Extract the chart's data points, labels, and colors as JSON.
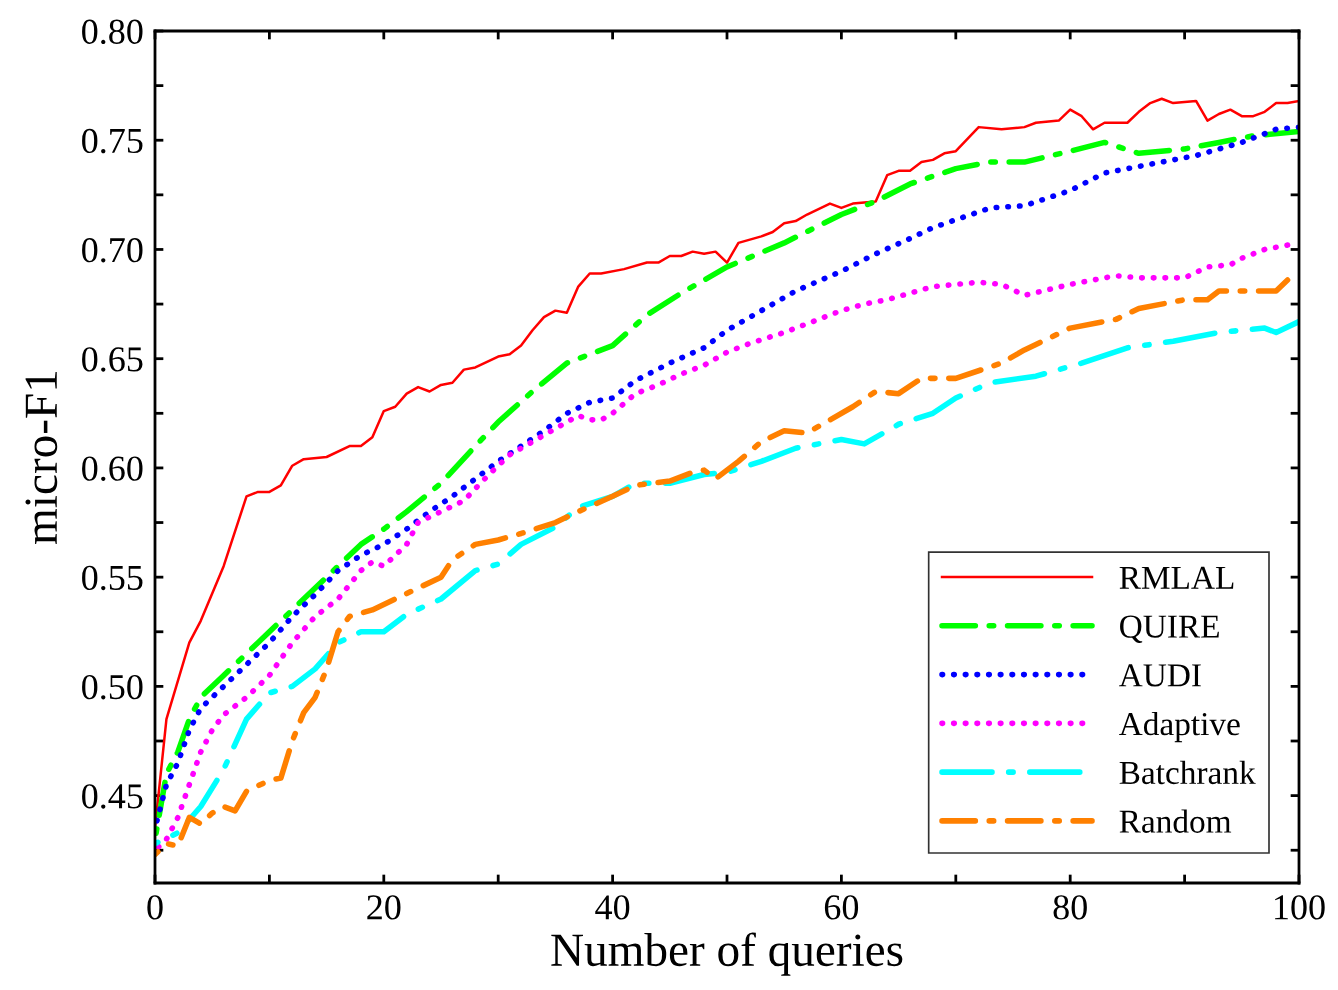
{
  "chart_data": {
    "type": "line",
    "xlabel": "Number of queries",
    "ylabel": "micro-F1",
    "xlim": [
      0,
      100
    ],
    "ylim": [
      0.41,
      0.8
    ],
    "xticks": [
      0,
      {
        "value": 10,
        "label": null
      },
      20,
      {
        "value": 30,
        "label": null
      },
      40,
      {
        "value": 50,
        "label": null
      },
      60,
      {
        "value": 70,
        "label": null
      },
      80,
      {
        "value": 90,
        "label": null
      },
      100
    ],
    "yticks": [
      {
        "value": 0.425,
        "label": null
      },
      {
        "value": 0.45,
        "label": "0.45"
      },
      {
        "value": 0.475,
        "label": null
      },
      {
        "value": 0.5,
        "label": "0.50"
      },
      {
        "value": 0.525,
        "label": null
      },
      {
        "value": 0.55,
        "label": "0.55"
      },
      {
        "value": 0.575,
        "label": null
      },
      {
        "value": 0.6,
        "label": "0.60"
      },
      {
        "value": 0.625,
        "label": null
      },
      {
        "value": 0.65,
        "label": "0.65"
      },
      {
        "value": 0.675,
        "label": null
      },
      {
        "value": 0.7,
        "label": "0.70"
      },
      {
        "value": 0.725,
        "label": null
      },
      {
        "value": 0.75,
        "label": "0.75"
      },
      {
        "value": 0.775,
        "label": null
      },
      {
        "value": 0.8,
        "label": "0.80"
      }
    ],
    "grid": false,
    "legend": "bottom right",
    "marker": "none",
    "series": [
      {
        "name": "RMLAL",
        "color": "#ff0000",
        "line_style": "solid",
        "x": [
          0,
          1,
          3,
          4,
          6,
          8,
          9,
          10,
          11,
          12,
          13,
          15,
          17,
          18,
          19,
          20,
          21,
          22,
          23,
          24,
          25,
          26,
          27,
          28,
          30,
          31,
          32,
          33,
          34,
          35,
          36,
          37,
          38,
          39,
          41,
          43,
          44,
          45,
          46,
          47,
          48,
          49,
          50,
          51,
          53,
          54,
          55,
          56,
          57,
          59,
          60,
          61,
          63,
          64,
          65,
          66,
          67,
          68,
          69,
          70,
          72,
          74,
          76,
          77,
          79,
          80,
          81,
          82,
          83,
          85,
          86,
          87,
          88,
          89,
          91,
          92,
          93,
          94,
          95,
          96,
          97,
          98,
          99,
          100
        ],
        "values": [
          0.435,
          0.485,
          0.52,
          0.53,
          0.555,
          0.587,
          0.589,
          0.589,
          0.592,
          0.601,
          0.604,
          0.605,
          0.61,
          0.61,
          0.614,
          0.626,
          0.628,
          0.634,
          0.637,
          0.635,
          0.638,
          0.639,
          0.645,
          0.646,
          0.651,
          0.652,
          0.656,
          0.663,
          0.669,
          0.672,
          0.671,
          0.683,
          0.689,
          0.689,
          0.691,
          0.694,
          0.694,
          0.697,
          0.697,
          0.699,
          0.698,
          0.699,
          0.694,
          0.703,
          0.706,
          0.708,
          0.712,
          0.713,
          0.716,
          0.721,
          0.719,
          0.721,
          0.722,
          0.734,
          0.736,
          0.736,
          0.74,
          0.741,
          0.744,
          0.745,
          0.756,
          0.755,
          0.756,
          0.758,
          0.759,
          0.764,
          0.761,
          0.755,
          0.758,
          0.758,
          0.763,
          0.767,
          0.769,
          0.767,
          0.768,
          0.759,
          0.762,
          0.764,
          0.761,
          0.761,
          0.763,
          0.767,
          0.767,
          0.768
        ]
      },
      {
        "name": "QUIRE",
        "color": "#00ff00",
        "line_style": "dashdot",
        "x": [
          0,
          1,
          2,
          3,
          4,
          6,
          8,
          10,
          12,
          15,
          18,
          20,
          22,
          25,
          28,
          30,
          33,
          36,
          40,
          43,
          46,
          50,
          55,
          60,
          63,
          66,
          70,
          73,
          76,
          80,
          83,
          86,
          90,
          93,
          96,
          100
        ],
        "values": [
          0.43,
          0.46,
          0.47,
          0.485,
          0.495,
          0.505,
          0.515,
          0.525,
          0.535,
          0.55,
          0.565,
          0.572,
          0.58,
          0.593,
          0.61,
          0.621,
          0.635,
          0.648,
          0.656,
          0.67,
          0.68,
          0.692,
          0.703,
          0.716,
          0.722,
          0.73,
          0.737,
          0.74,
          0.74,
          0.745,
          0.749,
          0.744,
          0.746,
          0.749,
          0.752,
          0.754
        ]
      },
      {
        "name": "AUDI",
        "color": "#0000ff",
        "line_style": "dotted",
        "x": [
          0,
          1,
          2,
          3,
          4,
          6,
          8,
          10,
          12,
          14,
          16,
          18,
          20,
          22,
          24,
          26,
          28,
          30,
          32,
          34,
          36,
          38,
          40,
          42,
          45,
          48,
          50,
          53,
          56,
          60,
          63,
          66,
          68,
          73,
          76,
          80,
          83,
          88,
          91,
          95,
          98,
          100
        ],
        "values": [
          0.435,
          0.455,
          0.465,
          0.48,
          0.49,
          0.5,
          0.51,
          0.52,
          0.532,
          0.542,
          0.553,
          0.56,
          0.565,
          0.572,
          0.58,
          0.587,
          0.595,
          0.603,
          0.61,
          0.617,
          0.625,
          0.63,
          0.632,
          0.64,
          0.648,
          0.655,
          0.663,
          0.672,
          0.681,
          0.69,
          0.698,
          0.705,
          0.71,
          0.719,
          0.72,
          0.727,
          0.735,
          0.74,
          0.743,
          0.749,
          0.755,
          0.756
        ]
      },
      {
        "name": "Adaptive",
        "color": "#ff00ff",
        "line_style": "dotted",
        "x": [
          0,
          1,
          2,
          3,
          4,
          5,
          6,
          8,
          10,
          12,
          14,
          16,
          18,
          19,
          20,
          22,
          23,
          25,
          27,
          29,
          31,
          33,
          35,
          37,
          38,
          39,
          40,
          42,
          44,
          46,
          48,
          50,
          52,
          55,
          58,
          60,
          62,
          64,
          66,
          68,
          72,
          74,
          76,
          80,
          84,
          86,
          90,
          92,
          94,
          95,
          97,
          99
        ],
        "values": [
          0.425,
          0.43,
          0.44,
          0.455,
          0.47,
          0.48,
          0.487,
          0.495,
          0.505,
          0.52,
          0.532,
          0.54,
          0.553,
          0.557,
          0.555,
          0.565,
          0.575,
          0.58,
          0.585,
          0.596,
          0.606,
          0.612,
          0.618,
          0.624,
          0.622,
          0.622,
          0.625,
          0.634,
          0.638,
          0.643,
          0.647,
          0.653,
          0.657,
          0.662,
          0.668,
          0.672,
          0.675,
          0.677,
          0.68,
          0.683,
          0.685,
          0.684,
          0.679,
          0.684,
          0.688,
          0.687,
          0.687,
          0.692,
          0.693,
          0.696,
          0.7,
          0.702
        ]
      },
      {
        "name": "Batchrank",
        "color": "#00ffff",
        "line_style": "longdashdot",
        "x": [
          0,
          2,
          4,
          6,
          8,
          10,
          12,
          14,
          16,
          18,
          20,
          22,
          25,
          28,
          30,
          32,
          35,
          37,
          40,
          42,
          45,
          48,
          50,
          53,
          56,
          60,
          62,
          65,
          68,
          70,
          73,
          77,
          81,
          85,
          89,
          93,
          97,
          98,
          100
        ],
        "values": [
          0.428,
          0.433,
          0.445,
          0.462,
          0.485,
          0.497,
          0.5,
          0.508,
          0.52,
          0.525,
          0.525,
          0.533,
          0.54,
          0.553,
          0.556,
          0.565,
          0.573,
          0.582,
          0.587,
          0.593,
          0.593,
          0.597,
          0.598,
          0.603,
          0.609,
          0.613,
          0.611,
          0.62,
          0.625,
          0.632,
          0.639,
          0.642,
          0.648,
          0.655,
          0.658,
          0.662,
          0.664,
          0.662,
          0.667
        ]
      },
      {
        "name": "Random",
        "color": "#ff8000",
        "line_style": "dashdot",
        "x": [
          0,
          1,
          2,
          3,
          4,
          5,
          6,
          7,
          8,
          10,
          11,
          12,
          13,
          14,
          15,
          16,
          17,
          19,
          21,
          23,
          25,
          26,
          28,
          30,
          32,
          35,
          37,
          40,
          42,
          45,
          47,
          48,
          49,
          51,
          53,
          55,
          57,
          59,
          61,
          63,
          65,
          67,
          70,
          74,
          76,
          80,
          84,
          86,
          90,
          92,
          93,
          97,
          98,
          99
        ],
        "values": [
          0.423,
          0.428,
          0.427,
          0.44,
          0.437,
          0.442,
          0.445,
          0.443,
          0.452,
          0.457,
          0.458,
          0.475,
          0.488,
          0.495,
          0.508,
          0.525,
          0.532,
          0.535,
          0.54,
          0.545,
          0.55,
          0.558,
          0.565,
          0.567,
          0.57,
          0.575,
          0.58,
          0.587,
          0.592,
          0.594,
          0.598,
          0.599,
          0.595,
          0.603,
          0.612,
          0.617,
          0.616,
          0.622,
          0.628,
          0.635,
          0.634,
          0.641,
          0.641,
          0.648,
          0.654,
          0.664,
          0.668,
          0.673,
          0.677,
          0.677,
          0.681,
          0.681,
          0.681,
          0.686
        ]
      }
    ]
  }
}
